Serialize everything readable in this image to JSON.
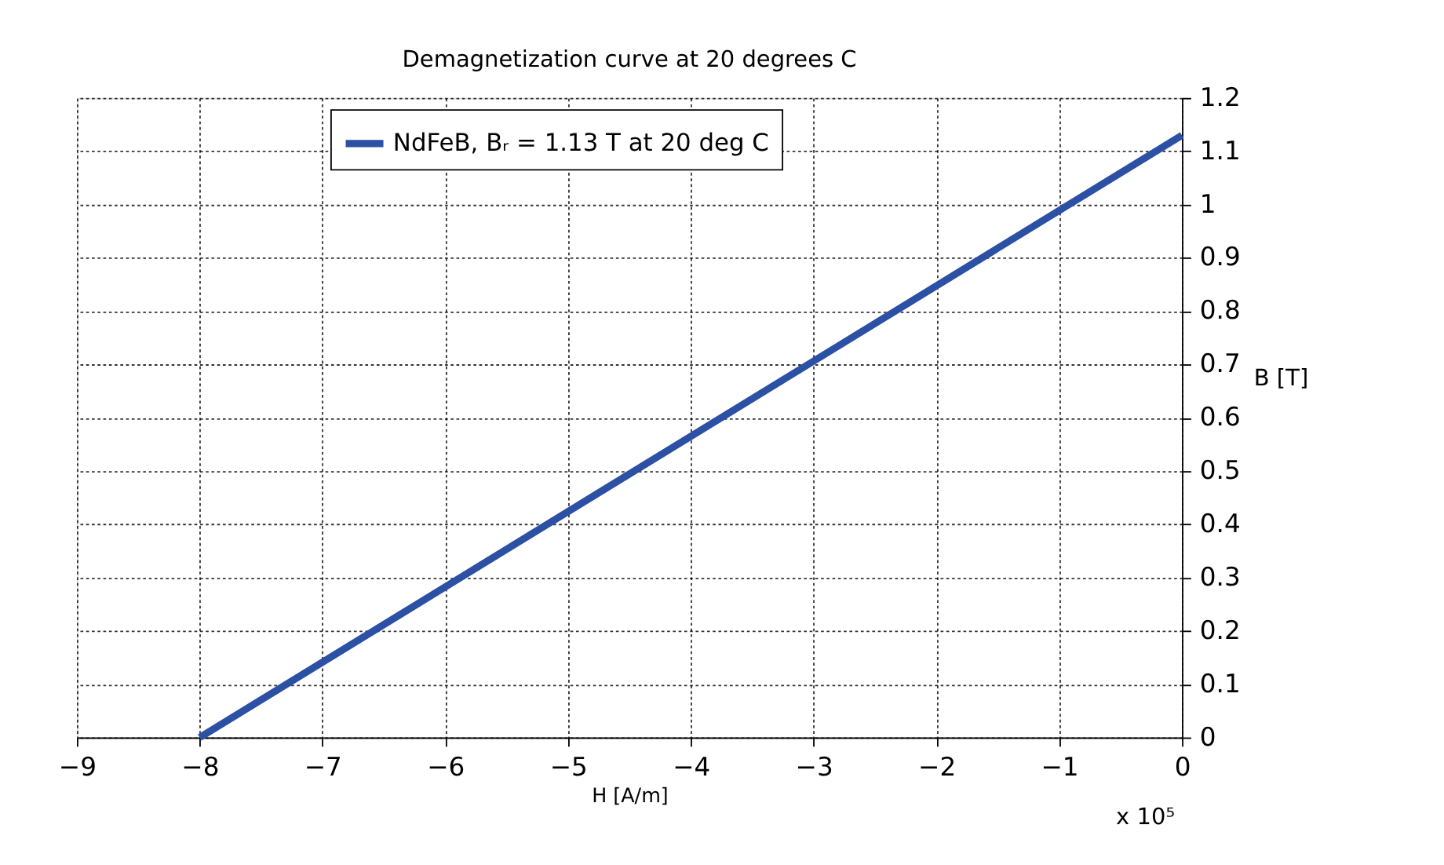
{
  "chart_data": {
    "type": "line",
    "title": "Demagnetization curve at 20 degrees C",
    "xlabel": "H [A/m]",
    "ylabel": "B [T]",
    "series": [
      {
        "name": "NdFeB, Bᵣ = 1.13 T at 20 deg C",
        "color": "#2b50a4",
        "x": [
          -8,
          0
        ],
        "values": [
          0,
          1.13
        ]
      }
    ],
    "xlim": [
      -9,
      0
    ],
    "xticks": [
      -9,
      -8,
      -7,
      -6,
      -5,
      -4,
      -3,
      -2,
      -1,
      0
    ],
    "ylim": [
      0,
      1.2
    ],
    "yticks": [
      0,
      0.1,
      0.2,
      0.3,
      0.4,
      0.5,
      0.6,
      0.7,
      0.8,
      0.9,
      1,
      1.1,
      1.2
    ],
    "annotations": [
      "x 10⁵"
    ],
    "grid": true,
    "legend": "top",
    "marker": "none",
    "line_style": "solid"
  }
}
